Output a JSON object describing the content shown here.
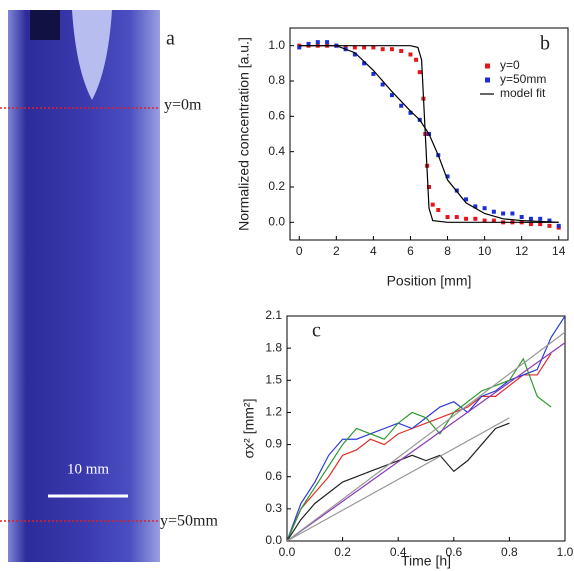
{
  "panel_a": {
    "label": "a",
    "line_top": "y=0m",
    "line_bottom": "y=50mm",
    "scale_bar": "10 mm"
  },
  "chart_data": [
    {
      "type": "scatter",
      "panel_label": "b",
      "y_label": "Normalized concentration [a.u.]",
      "x_label": "Position [mm]",
      "xlim": [
        -0.5,
        14.5
      ],
      "ylim": [
        -0.1,
        1.1
      ],
      "xticks": [
        0,
        2,
        4,
        6,
        8,
        10,
        12,
        14
      ],
      "yticks": [
        {
          "value": 0,
          "label": "0.0"
        },
        0.2,
        0.4,
        0.6,
        0.8,
        {
          "value": 1,
          "label": "1.0"
        }
      ],
      "legend": "upper right",
      "series": [
        {
          "name": "y=0",
          "color": "#e8141b",
          "style": "markers",
          "x": [
            0,
            0.5,
            1,
            1.5,
            2,
            2.5,
            3,
            3.5,
            4,
            4.5,
            5,
            5.5,
            6,
            6.3,
            6.5,
            6.7,
            6.8,
            6.9,
            7,
            7.2,
            7.5,
            8,
            8.5,
            9,
            9.5,
            10,
            10.5,
            11,
            11.5,
            12,
            12.5,
            13,
            13.5,
            14
          ],
          "values": [
            1.0,
            1.0,
            1.0,
            1.0,
            1.0,
            0.99,
            0.99,
            0.99,
            0.99,
            0.98,
            0.98,
            0.97,
            0.95,
            0.92,
            0.85,
            0.7,
            0.5,
            0.32,
            0.2,
            0.1,
            0.07,
            0.03,
            0.03,
            0.02,
            0.02,
            0.01,
            0.01,
            0.0,
            0.0,
            0.0,
            -0.01,
            -0.01,
            -0.02,
            -0.03
          ]
        },
        {
          "name": "y=50mm",
          "color": "#1a2ed8",
          "style": "markers",
          "x": [
            0,
            0.5,
            1,
            1.5,
            2,
            2.5,
            3,
            3.5,
            4,
            4.5,
            5,
            5.5,
            6,
            6.5,
            7,
            7.5,
            8,
            8.5,
            9,
            9.5,
            10,
            10.5,
            11,
            11.5,
            12,
            12.5,
            13,
            13.5,
            14
          ],
          "values": [
            0.99,
            1.01,
            1.02,
            1.02,
            1.0,
            0.98,
            0.95,
            0.9,
            0.84,
            0.78,
            0.72,
            0.66,
            0.62,
            0.58,
            0.5,
            0.38,
            0.26,
            0.18,
            0.13,
            0.09,
            0.08,
            0.06,
            0.05,
            0.05,
            0.03,
            0.02,
            0.02,
            0.01,
            -0.02
          ]
        },
        {
          "name": "model fit",
          "color": "#000000",
          "style": "line",
          "x": [
            0,
            6,
            6.4,
            6.6,
            6.8,
            7.0,
            7.2,
            8,
            14
          ],
          "values": [
            1.0,
            1.0,
            0.99,
            0.92,
            0.5,
            0.08,
            0.01,
            0.0,
            0.0
          ]
        },
        {
          "color": "#000000",
          "style": "line",
          "x": [
            0,
            2,
            3,
            4,
            5,
            6,
            6.5,
            7,
            7.5,
            8,
            9,
            10,
            11,
            12,
            14
          ],
          "values": [
            1.0,
            1.0,
            0.96,
            0.86,
            0.74,
            0.63,
            0.58,
            0.5,
            0.38,
            0.24,
            0.11,
            0.05,
            0.02,
            0.01,
            0.0
          ]
        }
      ]
    },
    {
      "type": "line",
      "panel_label": "c",
      "y_label": "σx² [mm²]",
      "x_label": "Time [h]",
      "xlim": [
        0,
        1
      ],
      "ylim": [
        0,
        2.1
      ],
      "xticks": [
        {
          "value": 0,
          "label": "0.0"
        },
        0.2,
        0.4,
        0.6,
        0.8,
        {
          "value": 1,
          "label": "1.0"
        }
      ],
      "yticks": [
        {
          "value": 0,
          "label": "0.0"
        },
        0.3,
        0.6,
        0.9,
        1.2,
        1.5,
        1.8,
        2.1
      ],
      "series": [
        {
          "color": "#e0302a",
          "x": [
            0,
            0.05,
            0.1,
            0.15,
            0.2,
            0.25,
            0.3,
            0.35,
            0.4,
            0.45,
            0.5,
            0.55,
            0.6,
            0.65,
            0.7,
            0.75,
            0.8,
            0.85,
            0.9,
            0.95
          ],
          "values": [
            0,
            0.3,
            0.45,
            0.6,
            0.8,
            0.85,
            0.95,
            0.9,
            1.0,
            1.05,
            1.1,
            1.15,
            1.2,
            1.25,
            1.35,
            1.35,
            1.45,
            1.55,
            1.55,
            1.75
          ]
        },
        {
          "color": "#2e3ad8",
          "x": [
            0,
            0.05,
            0.1,
            0.15,
            0.2,
            0.25,
            0.3,
            0.35,
            0.4,
            0.45,
            0.5,
            0.55,
            0.6,
            0.65,
            0.7,
            0.75,
            0.8,
            0.85,
            0.9,
            0.95,
            1.0
          ],
          "values": [
            0,
            0.35,
            0.55,
            0.8,
            0.95,
            0.95,
            1.0,
            1.05,
            1.1,
            1.05,
            1.15,
            1.25,
            1.3,
            1.2,
            1.35,
            1.4,
            1.5,
            1.55,
            1.6,
            1.9,
            2.1
          ]
        },
        {
          "color": "#2e9a2e",
          "x": [
            0,
            0.05,
            0.1,
            0.15,
            0.2,
            0.25,
            0.3,
            0.35,
            0.4,
            0.45,
            0.5,
            0.55,
            0.6,
            0.65,
            0.7,
            0.75,
            0.8,
            0.85,
            0.9,
            0.95
          ],
          "values": [
            0,
            0.3,
            0.5,
            0.7,
            0.9,
            1.05,
            1.0,
            0.95,
            1.1,
            1.2,
            1.15,
            1.0,
            1.2,
            1.3,
            1.4,
            1.45,
            1.5,
            1.7,
            1.35,
            1.25
          ]
        },
        {
          "color": "#222222",
          "x": [
            0,
            0.05,
            0.1,
            0.15,
            0.2,
            0.25,
            0.3,
            0.35,
            0.4,
            0.45,
            0.5,
            0.55,
            0.6,
            0.65,
            0.7,
            0.75,
            0.8
          ],
          "values": [
            0,
            0.2,
            0.35,
            0.45,
            0.55,
            0.6,
            0.65,
            0.7,
            0.75,
            0.8,
            0.75,
            0.8,
            0.65,
            0.75,
            0.9,
            1.05,
            1.1
          ]
        },
        {
          "color": "#8a3ab8",
          "x": [
            0,
            1
          ],
          "values": [
            0,
            1.85
          ]
        },
        {
          "color": "#999999",
          "x": [
            0,
            1
          ],
          "values": [
            0,
            1.95
          ]
        },
        {
          "color": "#999999",
          "x": [
            0,
            0.8
          ],
          "values": [
            0,
            1.15
          ]
        }
      ]
    }
  ]
}
